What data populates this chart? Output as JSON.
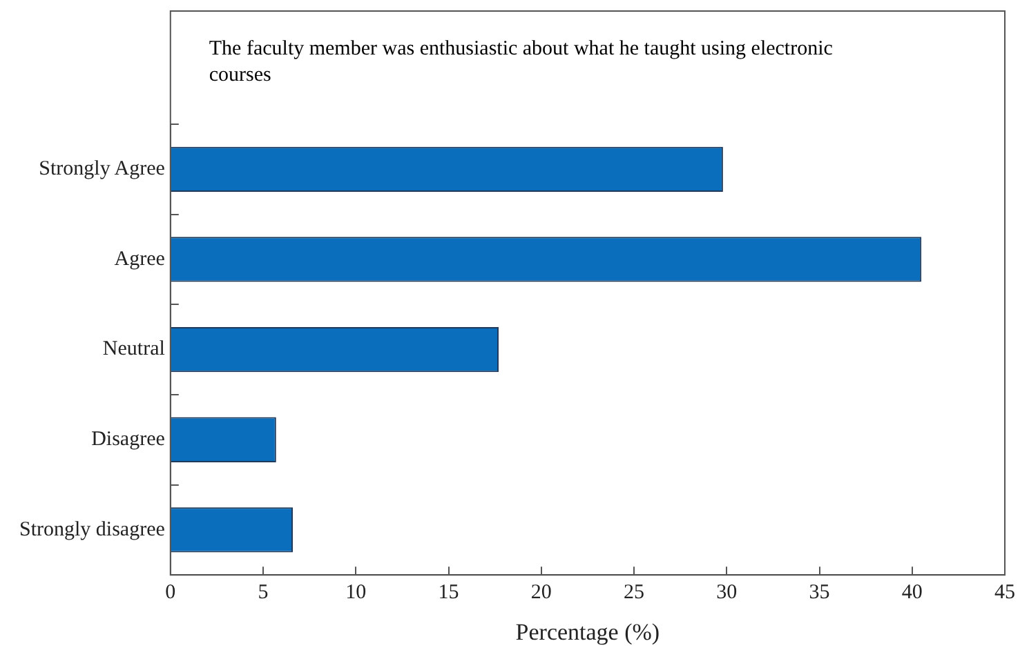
{
  "chart_data": {
    "type": "bar",
    "orientation": "horizontal",
    "title": "The faculty member was enthusiastic about what he taught using electronic courses",
    "categories": [
      "Strongly Agree",
      "Agree",
      "Neutral",
      "Disagree",
      "Strongly disagree"
    ],
    "values": [
      29.8,
      40.5,
      17.7,
      5.7,
      6.6
    ],
    "color": "#0a6ebd",
    "xlim": [
      0,
      45
    ],
    "xticks": [
      0,
      5,
      10,
      15,
      20,
      25,
      30,
      35,
      40,
      45
    ],
    "xlabel": "Percentage (%)",
    "grid": false,
    "legend": false
  }
}
